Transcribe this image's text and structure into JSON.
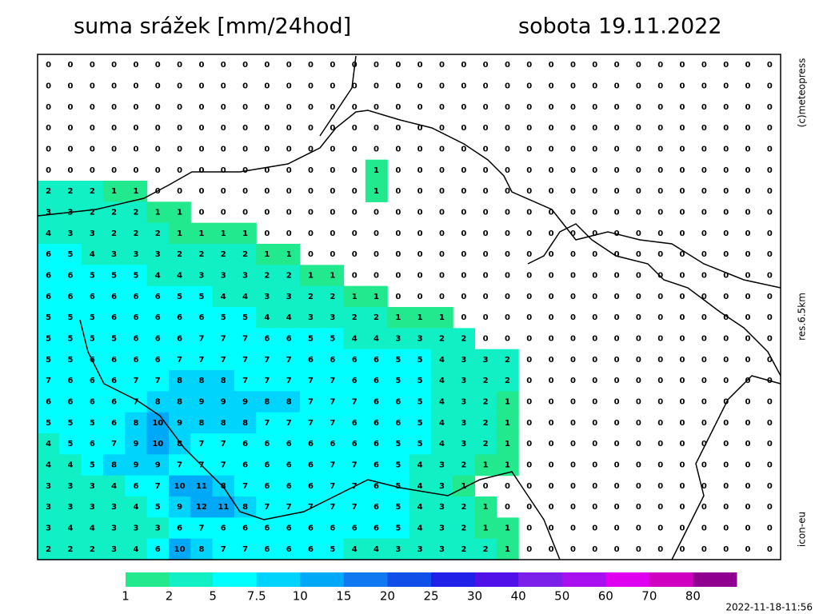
{
  "header": {
    "title": "suma srážek [mm/24hod]",
    "date": "sobota 19.11.2022"
  },
  "side": {
    "copyright": "(c)meteopress",
    "resolution": "res.6.5km",
    "model": "icon-eu"
  },
  "timestamp": "2022-11-18-11:56",
  "legend": {
    "labels": [
      1,
      2,
      5,
      7.5,
      10,
      15,
      20,
      25,
      30,
      40,
      50,
      60,
      70,
      80
    ],
    "colors": [
      "#22e88e",
      "#10f0c4",
      "#00ffff",
      "#00d4fc",
      "#00a8f8",
      "#1078f0",
      "#1050e8",
      "#2020e8",
      "#5010e8",
      "#7a20e8",
      "#a810f0",
      "#e000f0",
      "#d000c0",
      "#900090"
    ]
  },
  "grid": [
    [
      0,
      0,
      0,
      0,
      0,
      0,
      0,
      0,
      0,
      0,
      0,
      0,
      0,
      0,
      0,
      0,
      0,
      0,
      0,
      0,
      0,
      0,
      0,
      0,
      0,
      0,
      0,
      0,
      0,
      0,
      0,
      0,
      0,
      0
    ],
    [
      0,
      0,
      0,
      0,
      0,
      0,
      0,
      0,
      0,
      0,
      0,
      0,
      0,
      0,
      0,
      0,
      0,
      0,
      0,
      0,
      0,
      0,
      0,
      0,
      0,
      0,
      0,
      0,
      0,
      0,
      0,
      0,
      0,
      0
    ],
    [
      0,
      0,
      0,
      0,
      0,
      0,
      0,
      0,
      0,
      0,
      0,
      0,
      0,
      0,
      0,
      0,
      0,
      0,
      0,
      0,
      0,
      0,
      0,
      0,
      0,
      0,
      0,
      0,
      0,
      0,
      0,
      0,
      0,
      0
    ],
    [
      0,
      0,
      0,
      0,
      0,
      0,
      0,
      0,
      0,
      0,
      0,
      0,
      0,
      0,
      0,
      0,
      0,
      0,
      0,
      0,
      0,
      0,
      0,
      0,
      0,
      0,
      0,
      0,
      0,
      0,
      0,
      0,
      0,
      0
    ],
    [
      0,
      0,
      0,
      0,
      0,
      0,
      0,
      0,
      0,
      0,
      0,
      0,
      0,
      0,
      0,
      0,
      0,
      0,
      0,
      0,
      0,
      0,
      0,
      0,
      0,
      0,
      0,
      0,
      0,
      0,
      0,
      0,
      0,
      0
    ],
    [
      0,
      0,
      0,
      0,
      0,
      0,
      0,
      0,
      0,
      0,
      0,
      0,
      0,
      0,
      0,
      1,
      0,
      0,
      0,
      0,
      0,
      0,
      0,
      0,
      0,
      0,
      0,
      0,
      0,
      0,
      0,
      0,
      0,
      0
    ],
    [
      2,
      2,
      2,
      1,
      1,
      0,
      0,
      0,
      0,
      0,
      0,
      0,
      0,
      0,
      0,
      1,
      0,
      0,
      0,
      0,
      0,
      0,
      0,
      0,
      0,
      0,
      0,
      0,
      0,
      0,
      0,
      0,
      0,
      0
    ],
    [
      3,
      3,
      2,
      2,
      2,
      1,
      1,
      0,
      0,
      0,
      0,
      0,
      0,
      0,
      0,
      0,
      0,
      0,
      0,
      0,
      0,
      0,
      0,
      0,
      0,
      0,
      0,
      0,
      0,
      0,
      0,
      0,
      0,
      0
    ],
    [
      4,
      3,
      3,
      2,
      2,
      2,
      1,
      1,
      1,
      1,
      0,
      0,
      0,
      0,
      0,
      0,
      0,
      0,
      0,
      0,
      0,
      0,
      0,
      0,
      0,
      0,
      0,
      0,
      0,
      0,
      0,
      0,
      0,
      0
    ],
    [
      6,
      5,
      4,
      3,
      3,
      3,
      2,
      2,
      2,
      2,
      1,
      1,
      0,
      0,
      0,
      0,
      0,
      0,
      0,
      0,
      0,
      0,
      0,
      0,
      0,
      0,
      0,
      0,
      0,
      0,
      0,
      0,
      0,
      0
    ],
    [
      6,
      6,
      5,
      5,
      5,
      4,
      4,
      3,
      3,
      3,
      2,
      2,
      1,
      1,
      0,
      0,
      0,
      0,
      0,
      0,
      0,
      0,
      0,
      0,
      0,
      0,
      0,
      0,
      0,
      0,
      0,
      0,
      0,
      0
    ],
    [
      6,
      6,
      6,
      6,
      6,
      6,
      5,
      5,
      4,
      4,
      3,
      3,
      2,
      2,
      1,
      1,
      0,
      0,
      0,
      0,
      0,
      0,
      0,
      0,
      0,
      0,
      0,
      0,
      0,
      0,
      0,
      0,
      0,
      0
    ],
    [
      5,
      5,
      5,
      6,
      6,
      6,
      6,
      6,
      5,
      5,
      4,
      4,
      3,
      3,
      2,
      2,
      1,
      1,
      1,
      0,
      0,
      0,
      0,
      0,
      0,
      0,
      0,
      0,
      0,
      0,
      0,
      0,
      0,
      0
    ],
    [
      5,
      5,
      5,
      5,
      6,
      6,
      6,
      7,
      7,
      7,
      6,
      6,
      5,
      5,
      4,
      4,
      3,
      3,
      2,
      2,
      0,
      0,
      0,
      0,
      0,
      0,
      0,
      0,
      0,
      0,
      0,
      0,
      0,
      0
    ],
    [
      5,
      5,
      6,
      6,
      6,
      6,
      7,
      7,
      7,
      7,
      7,
      7,
      6,
      6,
      6,
      6,
      5,
      5,
      4,
      3,
      3,
      2,
      0,
      0,
      0,
      0,
      0,
      0,
      0,
      0,
      0,
      0,
      0,
      0
    ],
    [
      7,
      6,
      6,
      6,
      7,
      7,
      8,
      8,
      8,
      7,
      7,
      7,
      7,
      7,
      6,
      6,
      5,
      5,
      4,
      3,
      2,
      2,
      0,
      0,
      0,
      0,
      0,
      0,
      0,
      0,
      0,
      0,
      0,
      0
    ],
    [
      6,
      6,
      6,
      6,
      7,
      8,
      8,
      9,
      9,
      9,
      8,
      8,
      7,
      7,
      7,
      6,
      6,
      5,
      4,
      3,
      2,
      1,
      0,
      0,
      0,
      0,
      0,
      0,
      0,
      0,
      0,
      0,
      0,
      0
    ],
    [
      5,
      5,
      5,
      6,
      8,
      10,
      9,
      8,
      8,
      8,
      7,
      7,
      7,
      7,
      6,
      6,
      6,
      5,
      4,
      3,
      2,
      1,
      0,
      0,
      0,
      0,
      0,
      0,
      0,
      0,
      0,
      0,
      0,
      0
    ],
    [
      4,
      5,
      6,
      7,
      9,
      10,
      8,
      7,
      7,
      6,
      6,
      6,
      6,
      6,
      6,
      6,
      5,
      5,
      4,
      3,
      2,
      1,
      0,
      0,
      0,
      0,
      0,
      0,
      0,
      0,
      0,
      0,
      0,
      0
    ],
    [
      4,
      4,
      5,
      8,
      9,
      9,
      7,
      7,
      7,
      6,
      6,
      6,
      6,
      7,
      7,
      6,
      5,
      4,
      3,
      2,
      1,
      1,
      0,
      0,
      0,
      0,
      0,
      0,
      0,
      0,
      0,
      0,
      0,
      0
    ],
    [
      3,
      3,
      3,
      4,
      6,
      7,
      10,
      11,
      8,
      7,
      6,
      6,
      6,
      7,
      7,
      6,
      5,
      4,
      3,
      1,
      0,
      0,
      0,
      0,
      0,
      0,
      0,
      0,
      0,
      0,
      0,
      0,
      0,
      0
    ],
    [
      3,
      3,
      3,
      3,
      4,
      5,
      9,
      12,
      11,
      8,
      7,
      7,
      7,
      7,
      7,
      6,
      5,
      4,
      3,
      2,
      1,
      0,
      0,
      0,
      0,
      0,
      0,
      0,
      0,
      0,
      0,
      0,
      0,
      0
    ],
    [
      3,
      4,
      4,
      3,
      3,
      3,
      6,
      7,
      6,
      6,
      6,
      6,
      6,
      6,
      6,
      6,
      5,
      4,
      3,
      2,
      1,
      1,
      0,
      0,
      0,
      0,
      0,
      0,
      0,
      0,
      0,
      0,
      0,
      0
    ],
    [
      2,
      2,
      2,
      3,
      4,
      6,
      10,
      8,
      7,
      7,
      6,
      6,
      6,
      5,
      4,
      4,
      3,
      3,
      3,
      2,
      2,
      1,
      0,
      0,
      0,
      0,
      0,
      0,
      0,
      0,
      0,
      0,
      0,
      0
    ]
  ]
}
